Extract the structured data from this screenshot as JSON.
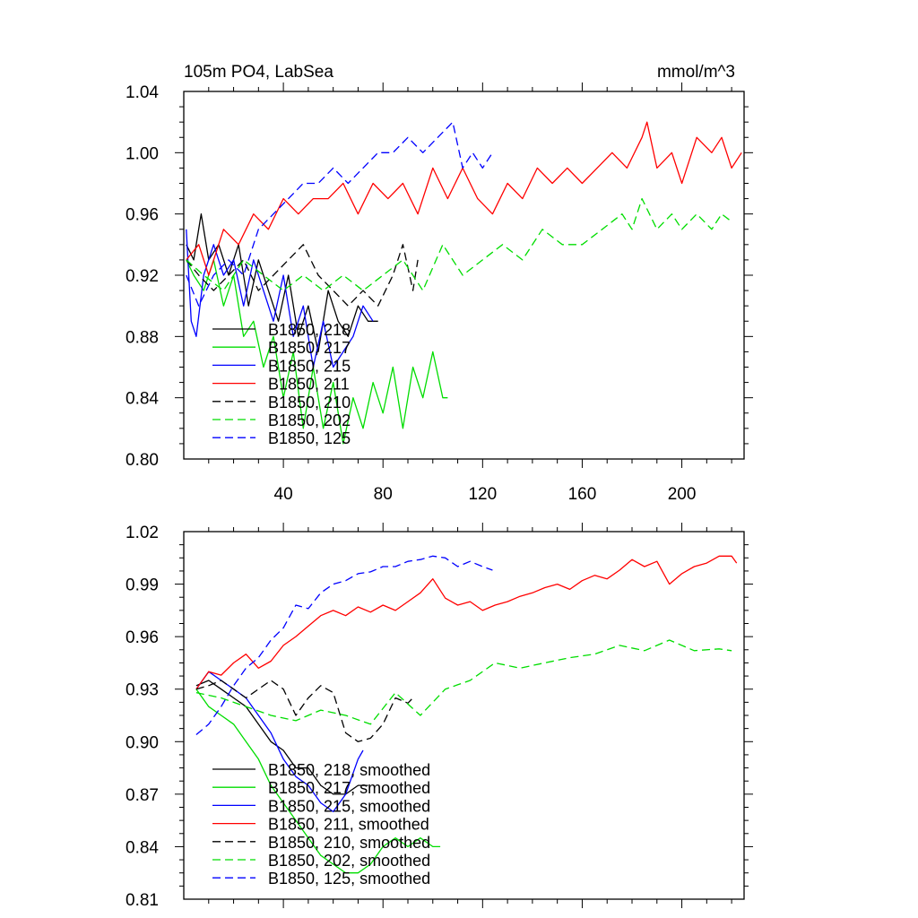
{
  "chart_data": [
    {
      "type": "line",
      "title": "105m PO4, LabSea",
      "units": "mmol/m^3",
      "xlim": [
        0,
        225
      ],
      "ylim": [
        0.8,
        1.04
      ],
      "xticks": [
        40,
        80,
        120,
        160,
        200
      ],
      "yticks": [
        0.8,
        0.84,
        0.88,
        0.92,
        0.96,
        1.0,
        1.04
      ],
      "ytick_labels": [
        "0.80",
        "0.84",
        "0.88",
        "0.92",
        "0.96",
        "1.00",
        "1.04"
      ],
      "legend_position": "lower-left",
      "series": [
        {
          "name": "B1850, 218",
          "color": "#000000",
          "dash": "solid",
          "x": [
            1,
            4,
            7,
            10,
            14,
            18,
            22,
            26,
            30,
            34,
            38,
            42,
            46,
            50,
            54,
            58,
            62,
            66,
            70,
            74,
            78
          ],
          "y": [
            0.94,
            0.93,
            0.96,
            0.93,
            0.94,
            0.92,
            0.94,
            0.9,
            0.93,
            0.91,
            0.89,
            0.92,
            0.88,
            0.9,
            0.87,
            0.91,
            0.89,
            0.88,
            0.9,
            0.89,
            0.89
          ]
        },
        {
          "name": "B1850, 217",
          "color": "#00dd00",
          "dash": "solid",
          "x": [
            1,
            4,
            8,
            12,
            16,
            20,
            24,
            28,
            32,
            36,
            40,
            44,
            48,
            52,
            56,
            60,
            64,
            68,
            72,
            76,
            80,
            84,
            88,
            92,
            96,
            100,
            104,
            106
          ],
          "y": [
            0.93,
            0.92,
            0.91,
            0.93,
            0.9,
            0.92,
            0.88,
            0.89,
            0.86,
            0.88,
            0.84,
            0.87,
            0.82,
            0.86,
            0.82,
            0.85,
            0.81,
            0.84,
            0.82,
            0.85,
            0.83,
            0.86,
            0.82,
            0.86,
            0.84,
            0.87,
            0.84,
            0.84
          ]
        },
        {
          "name": "B1850, 215",
          "color": "#0000ff",
          "dash": "solid",
          "x": [
            1,
            3,
            5,
            8,
            12,
            16,
            20,
            24,
            28,
            32,
            36,
            40,
            44,
            48,
            52,
            56,
            60,
            64,
            68,
            72,
            76
          ],
          "y": [
            0.95,
            0.89,
            0.88,
            0.92,
            0.94,
            0.92,
            0.93,
            0.9,
            0.93,
            0.91,
            0.89,
            0.92,
            0.88,
            0.9,
            0.86,
            0.89,
            0.86,
            0.87,
            0.88,
            0.9,
            0.89
          ]
        },
        {
          "name": "B1850, 211",
          "color": "#ff0000",
          "dash": "solid",
          "x": [
            1,
            6,
            10,
            16,
            22,
            28,
            34,
            40,
            46,
            52,
            58,
            64,
            70,
            76,
            82,
            88,
            94,
            100,
            106,
            112,
            118,
            124,
            130,
            136,
            142,
            148,
            154,
            160,
            166,
            172,
            178,
            184,
            186,
            190,
            196,
            200,
            206,
            212,
            216,
            220,
            224
          ],
          "y": [
            0.93,
            0.94,
            0.92,
            0.95,
            0.94,
            0.96,
            0.95,
            0.97,
            0.96,
            0.97,
            0.97,
            0.98,
            0.96,
            0.98,
            0.97,
            0.98,
            0.96,
            0.99,
            0.97,
            0.99,
            0.97,
            0.96,
            0.98,
            0.97,
            0.99,
            0.98,
            0.99,
            0.98,
            0.99,
            1.0,
            0.99,
            1.01,
            1.02,
            0.99,
            1.0,
            0.98,
            1.01,
            1.0,
            1.01,
            0.99,
            1.0
          ]
        },
        {
          "name": "B1850, 210",
          "color": "#000000",
          "dash": "dashed",
          "x": [
            1,
            6,
            12,
            18,
            24,
            30,
            36,
            42,
            48,
            54,
            60,
            66,
            72,
            78,
            84,
            88,
            92,
            94
          ],
          "y": [
            0.93,
            0.92,
            0.91,
            0.92,
            0.93,
            0.91,
            0.92,
            0.93,
            0.94,
            0.92,
            0.91,
            0.9,
            0.91,
            0.9,
            0.92,
            0.94,
            0.91,
            0.93
          ]
        },
        {
          "name": "B1850, 202",
          "color": "#00dd00",
          "dash": "dashed",
          "x": [
            1,
            8,
            16,
            24,
            32,
            40,
            48,
            56,
            64,
            72,
            80,
            88,
            96,
            104,
            112,
            120,
            128,
            136,
            144,
            152,
            160,
            168,
            176,
            180,
            184,
            190,
            196,
            200,
            206,
            212,
            216,
            220
          ],
          "y": [
            0.93,
            0.92,
            0.91,
            0.93,
            0.92,
            0.91,
            0.92,
            0.91,
            0.92,
            0.91,
            0.92,
            0.93,
            0.91,
            0.94,
            0.92,
            0.93,
            0.94,
            0.93,
            0.95,
            0.94,
            0.94,
            0.95,
            0.96,
            0.95,
            0.97,
            0.95,
            0.96,
            0.95,
            0.96,
            0.95,
            0.96,
            0.955
          ]
        },
        {
          "name": "B1850, 125",
          "color": "#0000ff",
          "dash": "dashed",
          "x": [
            1,
            6,
            12,
            18,
            24,
            30,
            36,
            42,
            48,
            54,
            60,
            66,
            72,
            78,
            84,
            90,
            96,
            102,
            108,
            112,
            116,
            120,
            124
          ],
          "y": [
            0.92,
            0.9,
            0.92,
            0.93,
            0.92,
            0.95,
            0.96,
            0.97,
            0.98,
            0.98,
            0.99,
            0.98,
            0.99,
            1.0,
            1.0,
            1.01,
            1.0,
            1.01,
            1.02,
            0.99,
            1.0,
            0.99,
            1.0
          ]
        }
      ]
    },
    {
      "type": "line",
      "title": "",
      "xlim": [
        0,
        225
      ],
      "ylim": [
        0.81,
        1.02
      ],
      "xticks": [
        40,
        80,
        120,
        160,
        200
      ],
      "yticks": [
        0.81,
        0.84,
        0.87,
        0.9,
        0.93,
        0.96,
        0.99,
        1.02
      ],
      "ytick_labels": [
        "0.81",
        "0.84",
        "0.87",
        "0.90",
        "0.93",
        "0.96",
        "0.99",
        "1.02"
      ],
      "legend_position": "lower-left",
      "series": [
        {
          "name": "B1850, 218, smoothed",
          "color": "#000000",
          "dash": "solid",
          "x": [
            5,
            10,
            15,
            20,
            25,
            30,
            35,
            40,
            45,
            50,
            55,
            60,
            65,
            70,
            74
          ],
          "y": [
            0.932,
            0.935,
            0.93,
            0.925,
            0.92,
            0.91,
            0.9,
            0.895,
            0.885,
            0.885,
            0.875,
            0.87,
            0.87,
            0.875,
            0.875
          ]
        },
        {
          "name": "B1850, 217, smoothed",
          "color": "#00dd00",
          "dash": "solid",
          "x": [
            5,
            10,
            15,
            20,
            25,
            30,
            35,
            40,
            45,
            50,
            55,
            60,
            65,
            70,
            75,
            80,
            85,
            90,
            95,
            100,
            103
          ],
          "y": [
            0.93,
            0.92,
            0.915,
            0.91,
            0.9,
            0.89,
            0.875,
            0.865,
            0.855,
            0.845,
            0.835,
            0.83,
            0.825,
            0.825,
            0.83,
            0.84,
            0.845,
            0.84,
            0.845,
            0.84,
            0.84
          ]
        },
        {
          "name": "B1850, 215, smoothed",
          "color": "#0000ff",
          "dash": "solid",
          "x": [
            5,
            10,
            15,
            20,
            25,
            30,
            35,
            40,
            45,
            50,
            55,
            60,
            65,
            70,
            72
          ],
          "y": [
            0.93,
            0.94,
            0.935,
            0.93,
            0.925,
            0.915,
            0.905,
            0.89,
            0.88,
            0.875,
            0.865,
            0.86,
            0.87,
            0.89,
            0.895
          ]
        },
        {
          "name": "B1850, 211, smoothed",
          "color": "#ff0000",
          "dash": "solid",
          "x": [
            5,
            10,
            15,
            20,
            25,
            30,
            35,
            40,
            45,
            50,
            55,
            60,
            65,
            70,
            75,
            80,
            85,
            90,
            95,
            100,
            105,
            110,
            115,
            120,
            125,
            130,
            135,
            140,
            145,
            150,
            155,
            160,
            165,
            170,
            175,
            180,
            185,
            190,
            195,
            200,
            205,
            210,
            215,
            220,
            222
          ],
          "y": [
            0.93,
            0.94,
            0.938,
            0.945,
            0.95,
            0.942,
            0.946,
            0.955,
            0.96,
            0.966,
            0.972,
            0.975,
            0.972,
            0.977,
            0.974,
            0.978,
            0.975,
            0.98,
            0.985,
            0.993,
            0.982,
            0.978,
            0.98,
            0.975,
            0.978,
            0.98,
            0.983,
            0.985,
            0.988,
            0.99,
            0.987,
            0.992,
            0.995,
            0.993,
            0.998,
            1.004,
            1.0,
            1.003,
            0.99,
            0.996,
            1.0,
            1.002,
            1.006,
            1.006,
            1.002
          ]
        },
        {
          "name": "B1850, 210, smoothed",
          "color": "#000000",
          "dash": "dashed",
          "x": [
            5,
            10,
            15,
            20,
            25,
            30,
            35,
            40,
            45,
            50,
            55,
            60,
            65,
            70,
            75,
            80,
            85,
            90,
            92
          ],
          "y": [
            0.93,
            0.932,
            0.935,
            0.93,
            0.925,
            0.93,
            0.935,
            0.93,
            0.915,
            0.925,
            0.932,
            0.928,
            0.905,
            0.9,
            0.902,
            0.91,
            0.925,
            0.922,
            0.925
          ]
        },
        {
          "name": "B1850, 202, smoothed",
          "color": "#00dd00",
          "dash": "dashed",
          "x": [
            5,
            15,
            25,
            35,
            45,
            55,
            65,
            75,
            85,
            95,
            105,
            115,
            125,
            135,
            145,
            155,
            165,
            175,
            185,
            195,
            205,
            215,
            220
          ],
          "y": [
            0.928,
            0.925,
            0.92,
            0.915,
            0.912,
            0.918,
            0.915,
            0.91,
            0.928,
            0.915,
            0.93,
            0.935,
            0.945,
            0.942,
            0.945,
            0.948,
            0.95,
            0.955,
            0.952,
            0.958,
            0.952,
            0.953,
            0.952
          ]
        },
        {
          "name": "B1850, 125, smoothed",
          "color": "#0000ff",
          "dash": "dashed",
          "x": [
            5,
            10,
            15,
            20,
            25,
            30,
            35,
            40,
            45,
            50,
            55,
            60,
            65,
            70,
            75,
            80,
            85,
            90,
            95,
            100,
            105,
            110,
            115,
            120,
            124
          ],
          "y": [
            0.904,
            0.91,
            0.92,
            0.932,
            0.942,
            0.948,
            0.958,
            0.965,
            0.978,
            0.976,
            0.985,
            0.99,
            0.992,
            0.996,
            0.997,
            1.0,
            1.0,
            1.003,
            1.004,
            1.006,
            1.005,
            1.0,
            1.003,
            1.0,
            0.998
          ]
        }
      ]
    }
  ]
}
